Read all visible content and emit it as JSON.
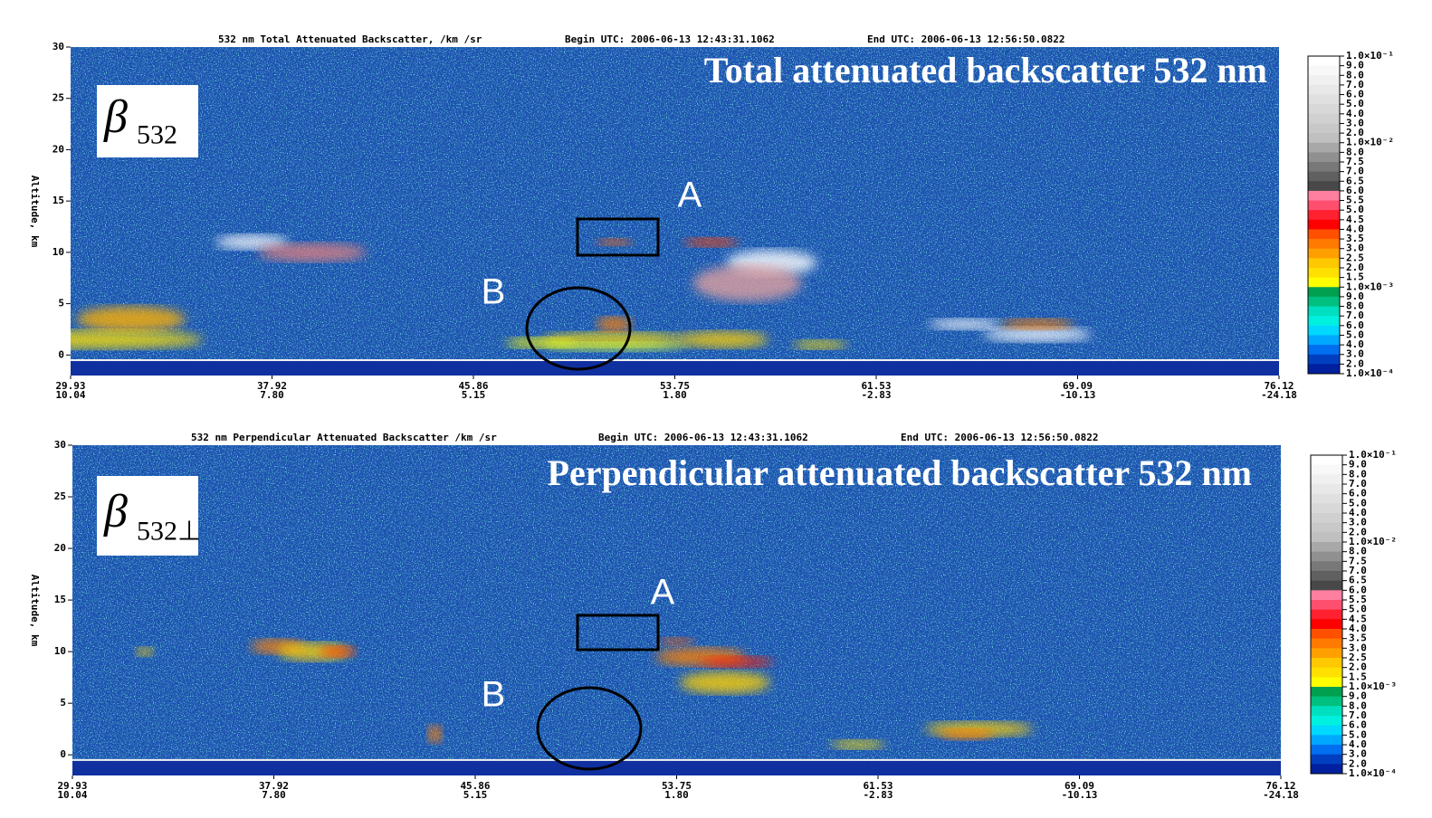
{
  "chart_data": [
    {
      "type": "heatmap",
      "title": "532 nm Total Attenuated Backscatter, /km /sr",
      "begin": "Begin UTC: 2006-06-13  12:43:31.1062",
      "end": "End UTC: 2006-06-13  12:56:50.0822",
      "overlay_title": "Total attenuated backscatter 532 nm",
      "symbol": "β",
      "subscript": "532",
      "y_label": "Altitude, km",
      "ylim": [
        -2,
        30
      ],
      "yticks": [
        0,
        5,
        10,
        15,
        20,
        25,
        30
      ],
      "x_labels": [
        [
          "29.93",
          "10.04"
        ],
        [
          "37.92",
          "7.80"
        ],
        [
          "45.86",
          "5.15"
        ],
        [
          "53.75",
          "1.80"
        ],
        [
          "61.53",
          "-2.83"
        ],
        [
          "69.09",
          "-10.13"
        ],
        [
          "76.12",
          "-24.18"
        ]
      ],
      "annotations": [
        "A",
        "B"
      ],
      "colorbar_labels": [
        "1.0×10⁻¹",
        "9.0",
        "8.0",
        "7.0",
        "6.0",
        "5.0",
        "4.0",
        "3.0",
        "2.0",
        "1.0×10⁻²",
        "8.0",
        "7.5",
        "7.0",
        "6.5",
        "6.0",
        "5.5",
        "5.0",
        "4.5",
        "4.0",
        "3.5",
        "3.0",
        "2.5",
        "2.0",
        "1.5",
        "1.0×10⁻³",
        "9.0",
        "8.0",
        "7.0",
        "6.0",
        "5.0",
        "4.0",
        "3.0",
        "2.0",
        "1.0×10⁻⁴"
      ],
      "colorbar_colors": [
        "#ffffff",
        "#f8f8f8",
        "#f0f0f0",
        "#e8e8e8",
        "#e0e0e0",
        "#d8d8d8",
        "#d0d0d0",
        "#c8c8c8",
        "#c0c0c0",
        "#a8a8a8",
        "#909090",
        "#787878",
        "#606060",
        "#484848",
        "#ff7fa0",
        "#ff4f6f",
        "#ff2030",
        "#ff0000",
        "#ff5000",
        "#ff7a00",
        "#ffa000",
        "#ffc800",
        "#ffe000",
        "#ffff00",
        "#00a050",
        "#00c080",
        "#00e0c0",
        "#00f0e0",
        "#00d8ff",
        "#00a8ff",
        "#0070f0",
        "#0040c0",
        "#0020a0"
      ]
    },
    {
      "type": "heatmap",
      "title": "532 nm Perpendicular Attenuated Backscatter /km /sr",
      "begin": "Begin UTC: 2006-06-13  12:43:31.1062",
      "end": "End UTC: 2006-06-13  12:56:50.0822",
      "overlay_title": "Perpendicular attenuated backscatter 532 nm",
      "symbol": "β",
      "subscript": "532⊥",
      "y_label": "Altitude, km",
      "ylim": [
        -2,
        30
      ],
      "yticks": [
        0,
        5,
        10,
        15,
        20,
        25,
        30
      ],
      "x_labels": [
        [
          "29.93",
          "10.04"
        ],
        [
          "37.92",
          "7.80"
        ],
        [
          "45.86",
          "5.15"
        ],
        [
          "53.75",
          "1.80"
        ],
        [
          "61.53",
          "-2.83"
        ],
        [
          "69.09",
          "-10.13"
        ],
        [
          "76.12",
          "-24.18"
        ]
      ],
      "annotations": [
        "A",
        "B"
      ],
      "colorbar_labels": [
        "1.0×10⁻¹",
        "9.0",
        "8.0",
        "7.0",
        "6.0",
        "5.0",
        "4.0",
        "3.0",
        "2.0",
        "1.0×10⁻²",
        "8.0",
        "7.5",
        "7.0",
        "6.5",
        "6.0",
        "5.5",
        "5.0",
        "4.5",
        "4.0",
        "3.5",
        "3.0",
        "2.5",
        "2.0",
        "1.5",
        "1.0×10⁻³",
        "9.0",
        "8.0",
        "7.0",
        "6.0",
        "5.0",
        "4.0",
        "3.0",
        "2.0",
        "1.0×10⁻⁴"
      ],
      "colorbar_colors": [
        "#ffffff",
        "#f8f8f8",
        "#f0f0f0",
        "#e8e8e8",
        "#e0e0e0",
        "#d8d8d8",
        "#d0d0d0",
        "#c8c8c8",
        "#c0c0c0",
        "#a8a8a8",
        "#909090",
        "#787878",
        "#606060",
        "#484848",
        "#ff7fa0",
        "#ff4f6f",
        "#ff2030",
        "#ff0000",
        "#ff5000",
        "#ff7a00",
        "#ffa000",
        "#ffc800",
        "#ffe000",
        "#ffff00",
        "#00a050",
        "#00c080",
        "#00e0c0",
        "#00f0e0",
        "#00d8ff",
        "#00a8ff",
        "#0070f0",
        "#0040c0",
        "#0020a0"
      ]
    }
  ]
}
